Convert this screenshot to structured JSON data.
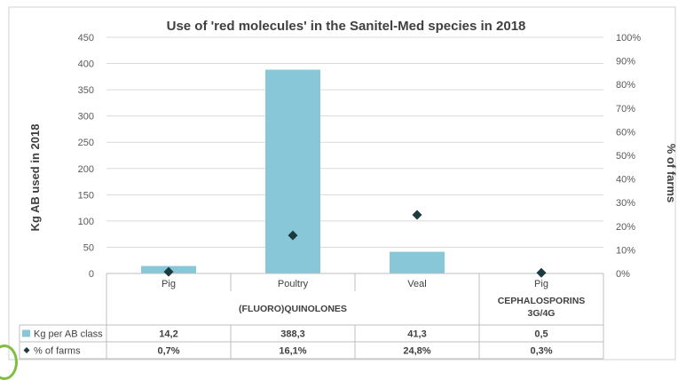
{
  "chart_data": {
    "type": "bar",
    "title": "Use of 'red molecules' in the Sanitel-Med species in 2018",
    "ylabel": "Kg AB used in 2018",
    "y2label": "% of farms",
    "ylim": [
      0,
      450
    ],
    "yticks": [
      "0",
      "50",
      "100",
      "150",
      "200",
      "250",
      "300",
      "350",
      "400",
      "450"
    ],
    "y2lim": [
      0,
      1
    ],
    "y2ticks": [
      "0%",
      "10%",
      "20%",
      "30%",
      "40%",
      "50%",
      "60%",
      "70%",
      "80%",
      "90%",
      "100%"
    ],
    "grid": true,
    "categories": [
      "Pig",
      "Poultry",
      "Veal",
      "Pig"
    ],
    "groups": [
      {
        "label": "(FLUORO)QUINOLONES",
        "span": 3
      },
      {
        "label": "CEPHALOSPORINS 3G/4G",
        "span": 1
      }
    ],
    "series": [
      {
        "name": "Kg per AB class",
        "type": "bar",
        "axis": "left",
        "color": "#87c7d8",
        "values": [
          14.2,
          388.3,
          41.3,
          0.5
        ],
        "labels": [
          "14,2",
          "388,3",
          "41,3",
          "0,5"
        ]
      },
      {
        "name": "% of farms",
        "type": "marker",
        "marker": "diamond",
        "axis": "right",
        "color": "#1d3a40",
        "values": [
          0.007,
          0.161,
          0.248,
          0.003
        ],
        "labels": [
          "0,7%",
          "16,1%",
          "24,8%",
          "0,3%"
        ]
      }
    ]
  }
}
